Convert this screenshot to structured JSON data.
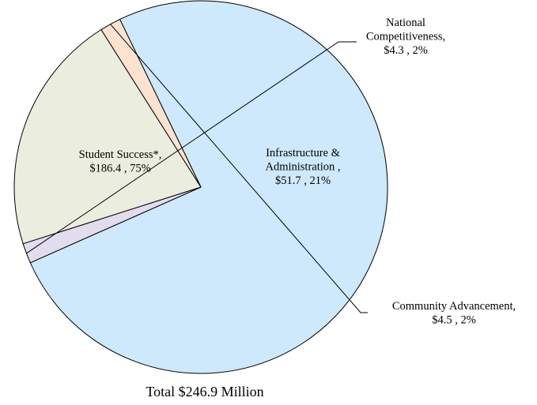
{
  "chart_data": {
    "type": "pie",
    "slices": [
      {
        "name": "Student Success*",
        "value": 186.4,
        "percent": 75,
        "color": "#cde9fb",
        "label_lines": [
          "Student Success*,",
          "$186.4 , 75%"
        ]
      },
      {
        "name": "National Competitiveness",
        "value": 4.3,
        "percent": 2,
        "color": "#e3dcef",
        "label_lines": [
          "National",
          "Competitiveness,",
          "$4.3 , 2%"
        ]
      },
      {
        "name": "Infrastructure & Administration",
        "value": 51.7,
        "percent": 21,
        "color": "#ebeedf",
        "label_lines": [
          "Infrastructure &",
          "Administration ,",
          "$51.7 , 21%"
        ]
      },
      {
        "name": "Community Advancement",
        "value": 4.5,
        "percent": 2,
        "color": "#fde2cf",
        "label_lines": [
          "Community Advancement,",
          "$4.5 , 2%"
        ]
      }
    ],
    "total_label": "Total  $246.9 Million",
    "legend": "none"
  }
}
